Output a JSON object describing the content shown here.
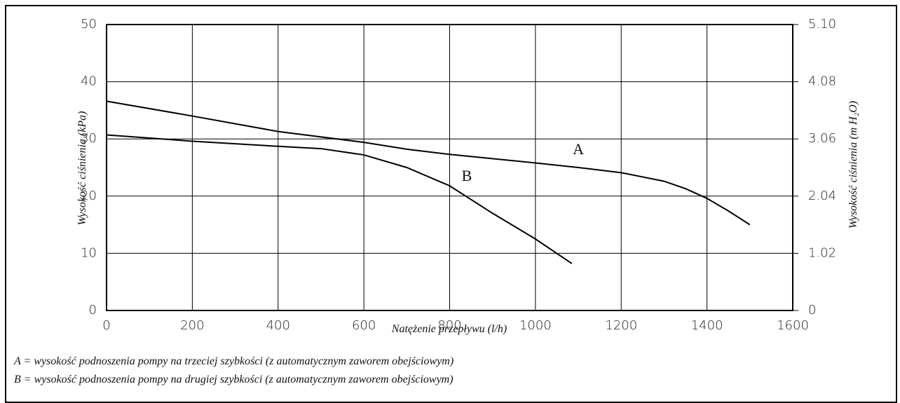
{
  "chart_data": {
    "type": "line",
    "x_label": "Natężenie przepływu (l/h)",
    "y_label": "Wysokość ciśnienia (kPa)",
    "y2_label": "Wysokość ciśnienia (m H₂O)",
    "xlim": [
      0,
      1600
    ],
    "xticks": [
      0,
      200,
      400,
      600,
      800,
      1000,
      1200,
      1400,
      1600
    ],
    "ylim": [
      0,
      50
    ],
    "yticks": [
      0,
      10,
      20,
      30,
      40,
      50
    ],
    "y2lim": [
      0,
      5.1
    ],
    "y2ticks": [
      0,
      1.02,
      2.04,
      3.06,
      4.08,
      {
        "value": 5.1,
        "label": "5.10"
      }
    ],
    "grid": true,
    "series": [
      {
        "name": "A",
        "color": "#000000",
        "x": [
          0,
          200,
          400,
          600,
          700,
          800,
          1000,
          1100,
          1200,
          1300,
          1350,
          1400,
          1450,
          1500
        ],
        "values": [
          36.6,
          34,
          31.3,
          29.4,
          28.2,
          27.3,
          25.8,
          25,
          24.1,
          22.6,
          21.3,
          19.6,
          17.4,
          15
        ]
      },
      {
        "name": "B",
        "color": "#000000",
        "x": [
          0,
          200,
          400,
          500,
          600,
          700,
          800,
          900,
          1000,
          1085
        ],
        "values": [
          30.7,
          29.6,
          28.7,
          28.3,
          27.2,
          25,
          21.8,
          17,
          12.5,
          8.2
        ]
      }
    ],
    "notes": [
      "A  =  wysokość podnoszenia pompy na trzeciej szybkości (z automatycznym zaworem obejściowym)",
      "B  =  wysokość podnoszenia pompy na drugiej szybkości (z automatycznym zaworem obejściowym)"
    ]
  }
}
